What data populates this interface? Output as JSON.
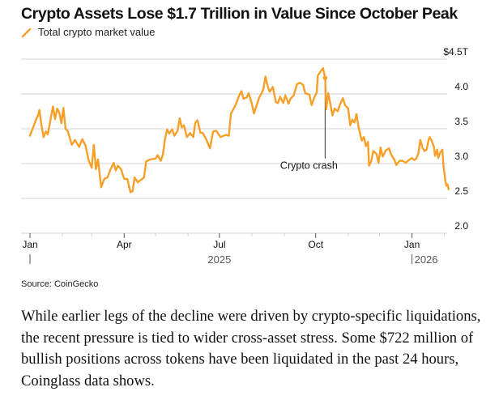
{
  "colors": {
    "series": "#f7a029",
    "grid": "#e3e3e3",
    "annotation": "#333333"
  },
  "chart_data": {
    "type": "line",
    "title": "Crypto Assets Lose $1.7 Trillion in Value Since October Peak",
    "legend": [
      {
        "name": "Total crypto market value",
        "placement": "top-left"
      }
    ],
    "xlabel": "",
    "ylabel": "",
    "y_unit_label": "$4.5T",
    "ylim": [
      2.0,
      4.5
    ],
    "yticks": [
      2.0,
      2.5,
      3.0,
      3.5,
      4.0,
      4.5
    ],
    "ytick_labels": [
      "2.0",
      "2.5",
      "3.0",
      "3.5",
      "4.0",
      "$4.5T"
    ],
    "grid": true,
    "xlim": [
      "2025-01-01",
      "2026-02-15"
    ],
    "xticks_major": [
      {
        "date": "2025-01-01",
        "label": "Jan"
      },
      {
        "date": "2025-04-01",
        "label": "Apr"
      },
      {
        "date": "2025-07-01",
        "label": "Jul"
      },
      {
        "date": "2025-10-01",
        "label": "Oct"
      },
      {
        "date": "2026-01-01",
        "label": "Jan"
      }
    ],
    "xticks_minor": [
      "2025-02-01",
      "2025-03-01",
      "2025-05-01",
      "2025-06-01",
      "2025-08-01",
      "2025-09-01",
      "2025-11-01",
      "2025-12-01",
      "2026-02-01"
    ],
    "year_labels": [
      {
        "date": "2025-07-01",
        "label": "2025",
        "divider_date": "2025-01-01"
      },
      {
        "date": "2026-01-01",
        "label": "2026",
        "divider_date": "2026-01-01"
      }
    ],
    "annotations": [
      {
        "date": "2025-10-10",
        "value": 4.23,
        "label": "Crypto crash",
        "label_value": 3.05
      }
    ],
    "series": [
      {
        "name": "Total crypto market value",
        "unit": "trillion USD",
        "points": [
          [
            "2025-01-01",
            3.4
          ],
          [
            "2025-01-04",
            3.52
          ],
          [
            "2025-01-07",
            3.64
          ],
          [
            "2025-01-09",
            3.7
          ],
          [
            "2025-01-10",
            3.77
          ],
          [
            "2025-01-12",
            3.55
          ],
          [
            "2025-01-14",
            3.38
          ],
          [
            "2025-01-16",
            3.46
          ],
          [
            "2025-01-18",
            3.42
          ],
          [
            "2025-01-21",
            3.66
          ],
          [
            "2025-01-23",
            3.82
          ],
          [
            "2025-01-25",
            3.64
          ],
          [
            "2025-01-27",
            3.79
          ],
          [
            "2025-01-29",
            3.73
          ],
          [
            "2025-01-31",
            3.58
          ],
          [
            "2025-02-02",
            3.8
          ],
          [
            "2025-02-04",
            3.5
          ],
          [
            "2025-02-06",
            3.47
          ],
          [
            "2025-02-10",
            3.27
          ],
          [
            "2025-02-13",
            3.34
          ],
          [
            "2025-02-17",
            3.24
          ],
          [
            "2025-02-20",
            3.35
          ],
          [
            "2025-02-23",
            3.26
          ],
          [
            "2025-02-26",
            3.05
          ],
          [
            "2025-03-01",
            2.94
          ],
          [
            "2025-03-03",
            3.27
          ],
          [
            "2025-03-05",
            2.92
          ],
          [
            "2025-03-07",
            3.06
          ],
          [
            "2025-03-10",
            2.66
          ],
          [
            "2025-03-13",
            2.78
          ],
          [
            "2025-03-16",
            2.8
          ],
          [
            "2025-03-19",
            2.92
          ],
          [
            "2025-03-22",
            3.01
          ],
          [
            "2025-03-24",
            2.9
          ],
          [
            "2025-03-26",
            2.97
          ],
          [
            "2025-03-29",
            2.92
          ],
          [
            "2025-04-01",
            2.78
          ],
          [
            "2025-04-04",
            2.78
          ],
          [
            "2025-04-07",
            2.59
          ],
          [
            "2025-04-09",
            2.6
          ],
          [
            "2025-04-11",
            2.8
          ],
          [
            "2025-04-14",
            2.73
          ],
          [
            "2025-04-20",
            2.8
          ],
          [
            "2025-04-22",
            3.03
          ],
          [
            "2025-04-26",
            3.06
          ],
          [
            "2025-05-01",
            3.07
          ],
          [
            "2025-05-03",
            3.12
          ],
          [
            "2025-05-06",
            3.04
          ],
          [
            "2025-05-08",
            3.13
          ],
          [
            "2025-05-10",
            3.35
          ],
          [
            "2025-05-12",
            3.49
          ],
          [
            "2025-05-14",
            3.43
          ],
          [
            "2025-05-17",
            3.49
          ],
          [
            "2025-05-19",
            3.4
          ],
          [
            "2025-05-22",
            3.47
          ],
          [
            "2025-05-24",
            3.65
          ],
          [
            "2025-05-26",
            3.52
          ],
          [
            "2025-05-28",
            3.55
          ],
          [
            "2025-05-31",
            3.38
          ],
          [
            "2025-06-03",
            3.44
          ],
          [
            "2025-06-06",
            3.38
          ],
          [
            "2025-06-08",
            3.59
          ],
          [
            "2025-06-10",
            3.62
          ],
          [
            "2025-06-13",
            3.44
          ],
          [
            "2025-06-15",
            3.44
          ],
          [
            "2025-06-18",
            3.36
          ],
          [
            "2025-06-22",
            3.22
          ],
          [
            "2025-06-25",
            3.46
          ],
          [
            "2025-06-28",
            3.47
          ],
          [
            "2025-07-02",
            3.38
          ],
          [
            "2025-07-07",
            3.41
          ],
          [
            "2025-07-10",
            3.4
          ],
          [
            "2025-07-12",
            3.72
          ],
          [
            "2025-07-15",
            3.8
          ],
          [
            "2025-07-17",
            3.86
          ],
          [
            "2025-07-20",
            3.98
          ],
          [
            "2025-07-22",
            4.04
          ],
          [
            "2025-07-24",
            3.93
          ],
          [
            "2025-07-27",
            3.95
          ],
          [
            "2025-07-29",
            4.01
          ],
          [
            "2025-08-01",
            3.86
          ],
          [
            "2025-08-03",
            3.72
          ],
          [
            "2025-08-05",
            3.81
          ],
          [
            "2025-08-08",
            3.95
          ],
          [
            "2025-08-10",
            4.0
          ],
          [
            "2025-08-12",
            4.07
          ],
          [
            "2025-08-14",
            4.25
          ],
          [
            "2025-08-16",
            4.12
          ],
          [
            "2025-08-18",
            4.03
          ],
          [
            "2025-08-21",
            4.1
          ],
          [
            "2025-08-24",
            3.88
          ],
          [
            "2025-08-26",
            3.87
          ],
          [
            "2025-08-28",
            3.96
          ],
          [
            "2025-08-31",
            3.87
          ],
          [
            "2025-09-02",
            3.98
          ],
          [
            "2025-09-05",
            3.86
          ],
          [
            "2025-09-07",
            3.93
          ],
          [
            "2025-09-10",
            3.98
          ],
          [
            "2025-09-13",
            4.14
          ],
          [
            "2025-09-16",
            4.16
          ],
          [
            "2025-09-19",
            4.13
          ],
          [
            "2025-09-21",
            4.01
          ],
          [
            "2025-09-25",
            3.99
          ],
          [
            "2025-09-27",
            3.84
          ],
          [
            "2025-09-30",
            3.96
          ],
          [
            "2025-10-02",
            4.02
          ],
          [
            "2025-10-03",
            4.26
          ],
          [
            "2025-10-06",
            4.33
          ],
          [
            "2025-10-08",
            4.37
          ],
          [
            "2025-10-09",
            4.3
          ],
          [
            "2025-10-10",
            4.23
          ],
          [
            "2025-10-11",
            3.78
          ],
          [
            "2025-10-13",
            4.01
          ],
          [
            "2025-10-15",
            3.86
          ],
          [
            "2025-10-17",
            3.69
          ],
          [
            "2025-10-19",
            3.79
          ],
          [
            "2025-10-22",
            3.75
          ],
          [
            "2025-10-24",
            3.84
          ],
          [
            "2025-10-27",
            3.94
          ],
          [
            "2025-10-29",
            3.84
          ],
          [
            "2025-11-01",
            3.79
          ],
          [
            "2025-11-03",
            3.55
          ],
          [
            "2025-11-05",
            3.63
          ],
          [
            "2025-11-07",
            3.59
          ],
          [
            "2025-11-09",
            3.71
          ],
          [
            "2025-11-11",
            3.52
          ],
          [
            "2025-11-14",
            3.33
          ],
          [
            "2025-11-16",
            3.38
          ],
          [
            "2025-11-18",
            3.25
          ],
          [
            "2025-11-20",
            3.31
          ],
          [
            "2025-11-21",
            2.97
          ],
          [
            "2025-11-23",
            3.03
          ],
          [
            "2025-11-25",
            3.18
          ],
          [
            "2025-11-28",
            3.14
          ],
          [
            "2025-11-30",
            3.01
          ],
          [
            "2025-12-02",
            3.23
          ],
          [
            "2025-12-04",
            3.1
          ],
          [
            "2025-12-07",
            3.19
          ],
          [
            "2025-12-10",
            3.22
          ],
          [
            "2025-12-12",
            3.13
          ],
          [
            "2025-12-15",
            3.06
          ],
          [
            "2025-12-17",
            2.98
          ],
          [
            "2025-12-20",
            3.04
          ],
          [
            "2025-12-23",
            3.04
          ],
          [
            "2025-12-26",
            3.01
          ],
          [
            "2025-12-29",
            3.05
          ],
          [
            "2026-01-01",
            3.08
          ],
          [
            "2026-01-03",
            3.05
          ],
          [
            "2026-01-05",
            3.07
          ],
          [
            "2026-01-07",
            3.14
          ],
          [
            "2026-01-09",
            3.34
          ],
          [
            "2026-01-11",
            3.23
          ],
          [
            "2026-01-13",
            3.18
          ],
          [
            "2026-01-15",
            3.2
          ],
          [
            "2026-01-17",
            3.35
          ],
          [
            "2026-01-18",
            3.38
          ],
          [
            "2026-01-20",
            3.32
          ],
          [
            "2026-01-22",
            3.24
          ],
          [
            "2026-01-23",
            3.11
          ],
          [
            "2026-01-25",
            3.2
          ],
          [
            "2026-01-26",
            3.08
          ],
          [
            "2026-01-28",
            3.16
          ],
          [
            "2026-01-30",
            3.2
          ],
          [
            "2026-01-31",
            2.97
          ],
          [
            "2026-02-02",
            2.74
          ],
          [
            "2026-02-03",
            2.68
          ],
          [
            "2026-02-04",
            2.7
          ],
          [
            "2026-02-05",
            2.63
          ]
        ]
      }
    ]
  },
  "source": "Source: CoinGecko",
  "article": {
    "paragraph": "While earlier legs of the decline were driven by crypto-specific liquidations, the recent pressure is tied to wider cross-asset stress. Some $722 million of bullish positions across tokens have been liquidated in the past 24 hours, Coinglass data shows."
  }
}
